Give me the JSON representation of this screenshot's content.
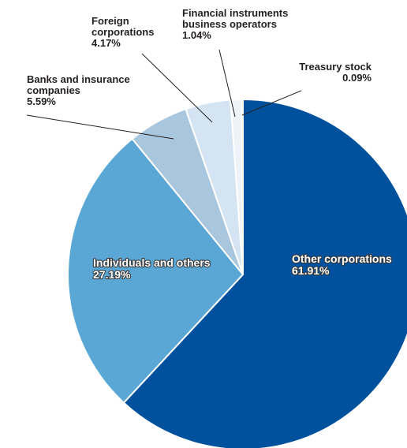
{
  "chart_data": {
    "type": "pie",
    "slices": [
      {
        "label": [
          "Other corporations"
        ],
        "value": 61.91,
        "value_text": "61.91%",
        "color": "#00519d"
      },
      {
        "label": [
          "Individuals and others"
        ],
        "value": 27.19,
        "value_text": "27.19%",
        "color": "#5aa7d6"
      },
      {
        "label": [
          "Banks and insurance",
          "companies"
        ],
        "value": 5.59,
        "value_text": "5.59%",
        "color": "#a9c6df"
      },
      {
        "label": [
          "Foreign",
          "corporations"
        ],
        "value": 4.17,
        "value_text": "4.17%",
        "color": "#d4e4f2"
      },
      {
        "label": [
          "Financial instruments",
          "business operators"
        ],
        "value": 1.04,
        "value_text": "1.04%",
        "color": "#eef3f9"
      },
      {
        "label": [
          "Treasury stock"
        ],
        "value": 0.09,
        "value_text": "0.09%",
        "color": "#b8b8b8"
      }
    ],
    "start": "12 o'clock",
    "direction": "clockwise",
    "legend": "none"
  }
}
